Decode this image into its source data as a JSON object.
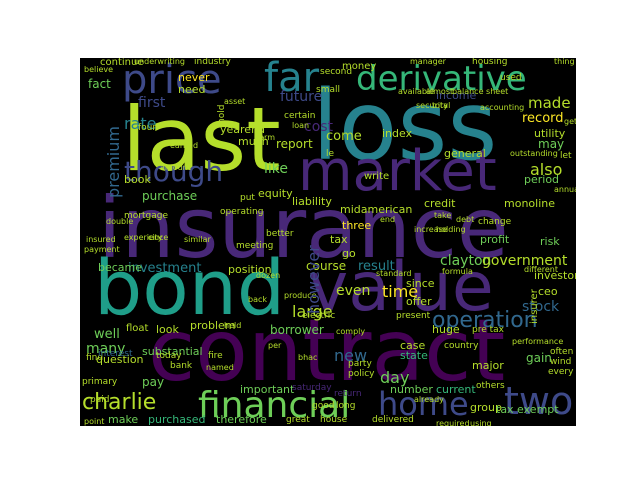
{
  "wordcloud": {
    "palette": [
      "#440154",
      "#482878",
      "#3e4a89",
      "#31688e",
      "#26828e",
      "#1f9e89",
      "#35b779",
      "#6ece58",
      "#b5de2b",
      "#fde725"
    ],
    "words": [
      {
        "text": "last",
        "color": "#b5de2b"
      },
      {
        "text": "loss",
        "color": "#26828e"
      },
      {
        "text": "insurance",
        "color": "#482878"
      },
      {
        "text": "contract",
        "color": "#440154"
      },
      {
        "text": "bond",
        "color": "#1f9e89"
      },
      {
        "text": "value",
        "color": "#482878"
      },
      {
        "text": "market",
        "color": "#482878"
      },
      {
        "text": "price",
        "color": "#3e4a89"
      },
      {
        "text": "far",
        "color": "#26828e"
      },
      {
        "text": "derivative",
        "color": "#35b779"
      },
      {
        "text": "financial",
        "color": "#6ece58"
      },
      {
        "text": "home",
        "color": "#3e4a89"
      },
      {
        "text": "two",
        "color": "#3e4a89"
      },
      {
        "text": "charlie",
        "color": "#b5de2b"
      },
      {
        "text": "though",
        "color": "#3e4a89"
      },
      {
        "text": "operation",
        "color": "#31688e"
      },
      {
        "text": "future",
        "color": "#3e4a89"
      },
      {
        "text": "cost",
        "color": "#482878"
      },
      {
        "text": "first",
        "color": "#3e4a89"
      },
      {
        "text": "come",
        "color": "#b5de2b"
      },
      {
        "text": "made",
        "color": "#b5de2b"
      },
      {
        "text": "record",
        "color": "#fde725"
      },
      {
        "text": "may",
        "color": "#6ece58"
      },
      {
        "text": "also",
        "color": "#b5de2b"
      },
      {
        "text": "many",
        "color": "#6ece58"
      },
      {
        "text": "new",
        "color": "#31688e"
      },
      {
        "text": "day",
        "color": "#6ece58"
      },
      {
        "text": "time",
        "color": "#fde725"
      },
      {
        "text": "even",
        "color": "#b5de2b"
      },
      {
        "text": "large",
        "color": "#b5de2b"
      },
      {
        "text": "investment",
        "color": "#26828e"
      },
      {
        "text": "result",
        "color": "#26828e"
      },
      {
        "text": "clayton",
        "color": "#6ece58"
      },
      {
        "text": "government",
        "color": "#b5de2b"
      },
      {
        "text": "stock",
        "color": "#31688e"
      },
      {
        "text": "like",
        "color": "#6ece58"
      },
      {
        "text": "report",
        "color": "#b5de2b"
      },
      {
        "text": "well",
        "color": "#6ece58"
      },
      {
        "text": "fact",
        "color": "#6ece58"
      },
      {
        "text": "rate",
        "color": "#26828e"
      },
      {
        "text": "income",
        "color": "#3e4a89"
      },
      {
        "text": "utility",
        "color": "#b5de2b"
      },
      {
        "text": "period",
        "color": "#6ece58"
      },
      {
        "text": "monoline",
        "color": "#b5de2b"
      },
      {
        "text": "credit",
        "color": "#b5de2b"
      },
      {
        "text": "midamerican",
        "color": "#b5de2b"
      },
      {
        "text": "three",
        "color": "#fde725"
      },
      {
        "text": "index",
        "color": "#b5de2b"
      },
      {
        "text": "general",
        "color": "#b5de2b"
      },
      {
        "text": "borrower",
        "color": "#6ece58"
      },
      {
        "text": "problem",
        "color": "#b5de2b"
      },
      {
        "text": "look",
        "color": "#b5de2b"
      },
      {
        "text": "pay",
        "color": "#6ece58"
      },
      {
        "text": "question",
        "color": "#b5de2b"
      },
      {
        "text": "make",
        "color": "#6ece58"
      },
      {
        "text": "purchased",
        "color": "#35b779"
      },
      {
        "text": "number",
        "color": "#6ece58"
      },
      {
        "text": "current",
        "color": "#35b779"
      },
      {
        "text": "group",
        "color": "#b5de2b"
      },
      {
        "text": "major",
        "color": "#b5de2b"
      },
      {
        "text": "case",
        "color": "#b5de2b"
      },
      {
        "text": "state",
        "color": "#35b779"
      },
      {
        "text": "huge",
        "color": "#b5de2b"
      },
      {
        "text": "course",
        "color": "#b5de2b"
      },
      {
        "text": "purchase",
        "color": "#6ece58"
      },
      {
        "text": "book",
        "color": "#b5de2b"
      },
      {
        "text": "equity",
        "color": "#b5de2b"
      },
      {
        "text": "liability",
        "color": "#b5de2b"
      },
      {
        "text": "yearend",
        "color": "#b5de2b"
      },
      {
        "text": "premium",
        "color": "#31688e"
      },
      {
        "text": "however",
        "color": "#3e4a89"
      },
      {
        "text": "insurer",
        "color": "#b5de2b"
      },
      {
        "text": "tax exempt",
        "color": "#6ece58"
      },
      {
        "text": "substantial",
        "color": "#6ece58"
      },
      {
        "text": "important",
        "color": "#6ece58"
      },
      {
        "text": "therefore",
        "color": "#6ece58"
      },
      {
        "text": "risk",
        "color": "#6ece58"
      },
      {
        "text": "profit",
        "color": "#6ece58"
      },
      {
        "text": "investor",
        "color": "#b5de2b"
      },
      {
        "text": "ceo",
        "color": "#b5de2b"
      },
      {
        "text": "gain",
        "color": "#6ece58"
      },
      {
        "text": "position",
        "color": "#b5de2b"
      },
      {
        "text": "became",
        "color": "#6ece58"
      },
      {
        "text": "go",
        "color": "#b5de2b"
      },
      {
        "text": "since",
        "color": "#b5de2b"
      },
      {
        "text": "offer",
        "color": "#b5de2b"
      },
      {
        "text": "tax",
        "color": "#b5de2b"
      },
      {
        "text": "much",
        "color": "#b5de2b"
      },
      {
        "text": "hold",
        "color": "#b5de2b"
      },
      {
        "text": "never",
        "color": "#fde725"
      },
      {
        "text": "need",
        "color": "#b5de2b"
      },
      {
        "text": "continue",
        "color": "#b5de2b"
      },
      {
        "text": "money",
        "color": "#b5de2b"
      },
      {
        "text": "second",
        "color": "#b5de2b"
      },
      {
        "text": "small",
        "color": "#b5de2b"
      },
      {
        "text": "certain",
        "color": "#b5de2b"
      },
      {
        "text": "four",
        "color": "#b5de2b"
      },
      {
        "text": "write",
        "color": "#b5de2b"
      },
      {
        "text": "put",
        "color": "#b5de2b"
      },
      {
        "text": "operating",
        "color": "#b5de2b"
      },
      {
        "text": "meeting",
        "color": "#b5de2b"
      },
      {
        "text": "better",
        "color": "#b5de2b"
      },
      {
        "text": "change",
        "color": "#b5de2b"
      },
      {
        "text": "float",
        "color": "#b5de2b"
      },
      {
        "text": "paid",
        "color": "#b5de2b"
      },
      {
        "text": "bank",
        "color": "#b5de2b"
      },
      {
        "text": "today",
        "color": "#b5de2b"
      },
      {
        "text": "primary",
        "color": "#b5de2b"
      },
      {
        "text": "find",
        "color": "#b5de2b"
      },
      {
        "text": "interest",
        "color": "#31688e"
      },
      {
        "text": "fire",
        "color": "#b5de2b"
      },
      {
        "text": "party",
        "color": "#b5de2b"
      },
      {
        "text": "policy",
        "color": "#b5de2b"
      },
      {
        "text": "pre tax",
        "color": "#b5de2b"
      },
      {
        "text": "electric",
        "color": "#b5de2b"
      },
      {
        "text": "present",
        "color": "#b5de2b"
      },
      {
        "text": "country",
        "color": "#b5de2b"
      },
      {
        "text": "others",
        "color": "#b5de2b"
      },
      {
        "text": "often",
        "color": "#b5de2b"
      },
      {
        "text": "wind",
        "color": "#b5de2b"
      },
      {
        "text": "every",
        "color": "#b5de2b"
      },
      {
        "text": "saturday",
        "color": "#482878"
      },
      {
        "text": "return",
        "color": "#482878"
      },
      {
        "text": "great",
        "color": "#b5de2b"
      },
      {
        "text": "house",
        "color": "#b5de2b"
      },
      {
        "text": "delivered",
        "color": "#b5de2b"
      },
      {
        "text": "good",
        "color": "#b5de2b"
      },
      {
        "text": "long",
        "color": "#b5de2b"
      },
      {
        "text": "industry",
        "color": "#b5de2b"
      },
      {
        "text": "underwriting",
        "color": "#b5de2b"
      },
      {
        "text": "believe",
        "color": "#b5de2b"
      },
      {
        "text": "housing",
        "color": "#b5de2b"
      },
      {
        "text": "used",
        "color": "#b5de2b"
      },
      {
        "text": "manager",
        "color": "#b5de2b"
      },
      {
        "text": "thing",
        "color": "#b5de2b"
      },
      {
        "text": "available",
        "color": "#b5de2b"
      },
      {
        "text": "almost",
        "color": "#b5de2b"
      },
      {
        "text": "balance sheet",
        "color": "#b5de2b"
      },
      {
        "text": "total",
        "color": "#b5de2b"
      },
      {
        "text": "accounting",
        "color": "#b5de2b"
      },
      {
        "text": "get",
        "color": "#b5de2b"
      },
      {
        "text": "outstanding",
        "color": "#b5de2b"
      },
      {
        "text": "let",
        "color": "#b5de2b"
      },
      {
        "text": "annual",
        "color": "#b5de2b"
      },
      {
        "text": "take",
        "color": "#b5de2b"
      },
      {
        "text": "end",
        "color": "#b5de2b"
      },
      {
        "text": "increase",
        "color": "#b5de2b"
      },
      {
        "text": "holding",
        "color": "#b5de2b"
      },
      {
        "text": "debt",
        "color": "#b5de2b"
      },
      {
        "text": "formula",
        "color": "#b5de2b"
      },
      {
        "text": "standard",
        "color": "#b5de2b"
      },
      {
        "text": "different",
        "color": "#b5de2b"
      },
      {
        "text": "payment",
        "color": "#b5de2b"
      },
      {
        "text": "insured",
        "color": "#b5de2b"
      },
      {
        "text": "mortgage",
        "color": "#b5de2b"
      },
      {
        "text": "experience",
        "color": "#b5de2b"
      },
      {
        "text": "similar",
        "color": "#b5de2b"
      },
      {
        "text": "city",
        "color": "#b5de2b"
      },
      {
        "text": "produce",
        "color": "#b5de2b"
      },
      {
        "text": "dozen",
        "color": "#b5de2b"
      },
      {
        "text": "back",
        "color": "#b5de2b"
      },
      {
        "text": "held",
        "color": "#b5de2b"
      },
      {
        "text": "per",
        "color": "#b5de2b"
      },
      {
        "text": "amount",
        "color": "#b5de2b"
      },
      {
        "text": "asset",
        "color": "#b5de2b"
      },
      {
        "text": "security",
        "color": "#b5de2b"
      },
      {
        "text": "term",
        "color": "#b5de2b"
      },
      {
        "text": "loan",
        "color": "#b5de2b"
      },
      {
        "text": "le",
        "color": "#b5de2b"
      },
      {
        "text": "earned",
        "color": "#b5de2b"
      },
      {
        "text": "point",
        "color": "#b5de2b"
      },
      {
        "text": "required",
        "color": "#b5de2b"
      },
      {
        "text": "using",
        "color": "#b5de2b"
      },
      {
        "text": "comply",
        "color": "#b5de2b"
      },
      {
        "text": "bhac",
        "color": "#b5de2b"
      },
      {
        "text": "performance",
        "color": "#b5de2b"
      },
      {
        "text": "already",
        "color": "#b5de2b"
      },
      {
        "text": "named",
        "color": "#b5de2b"
      },
      {
        "text": "double",
        "color": "#b5de2b"
      }
    ]
  }
}
